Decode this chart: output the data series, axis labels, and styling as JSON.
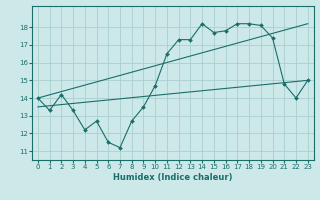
{
  "xlabel": "Humidex (Indice chaleur)",
  "bg_color": "#cce8e8",
  "grid_color": "#aacfcf",
  "line_color": "#1a6e6a",
  "xlim": [
    -0.5,
    23.5
  ],
  "ylim": [
    10.5,
    19.2
  ],
  "yticks": [
    11,
    12,
    13,
    14,
    15,
    16,
    17,
    18
  ],
  "xticks": [
    0,
    1,
    2,
    3,
    4,
    5,
    6,
    7,
    8,
    9,
    10,
    11,
    12,
    13,
    14,
    15,
    16,
    17,
    18,
    19,
    20,
    21,
    22,
    23
  ],
  "line1_x": [
    0,
    1,
    2,
    3,
    4,
    5,
    6,
    7,
    8,
    9,
    10,
    11,
    12,
    13,
    14,
    15,
    16,
    17,
    18,
    19,
    20,
    21,
    22,
    23
  ],
  "line1_y": [
    14.0,
    13.3,
    14.2,
    13.3,
    12.2,
    12.7,
    11.5,
    11.2,
    12.7,
    13.5,
    14.7,
    16.5,
    17.3,
    17.3,
    18.2,
    17.7,
    17.8,
    18.2,
    18.2,
    18.1,
    17.4,
    14.8,
    14.0,
    15.0
  ],
  "line2_x": [
    0,
    23
  ],
  "line2_y": [
    14.0,
    18.2
  ],
  "line3_x": [
    0,
    23
  ],
  "line3_y": [
    13.5,
    15.0
  ]
}
